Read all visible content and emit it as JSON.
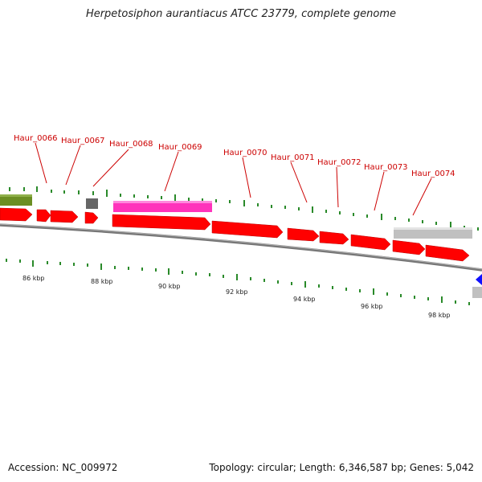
{
  "title": "Herpetosiphon aurantiacus ATCC 23779, complete genome",
  "footer": {
    "accession": "Accession: NC_009972",
    "summary": "Topology: circular; Length: 6,346,587 bp; Genes: 5,042"
  },
  "colors": {
    "cds": "#ff0000",
    "highlight": "#ff33bb",
    "olive": "#6b8e23",
    "gray_feature": "#c0c0c0",
    "dark_gray_feature": "#666666",
    "blue_feature": "#1010ff",
    "tick": "#2a8a2a",
    "label": "#cc0000",
    "backbone": "#777777"
  },
  "gene_labels": [
    "Haur_0066",
    "Haur_0067",
    "Haur_0068",
    "Haur_0069",
    "Haur_0070",
    "Haur_0071",
    "Haur_0072",
    "Haur_0073",
    "Haur_0074"
  ],
  "scale_labels": [
    "86 kbp",
    "88 kbp",
    "90 kbp",
    "92 kbp",
    "94 kbp",
    "96 kbp",
    "98 kbp"
  ]
}
